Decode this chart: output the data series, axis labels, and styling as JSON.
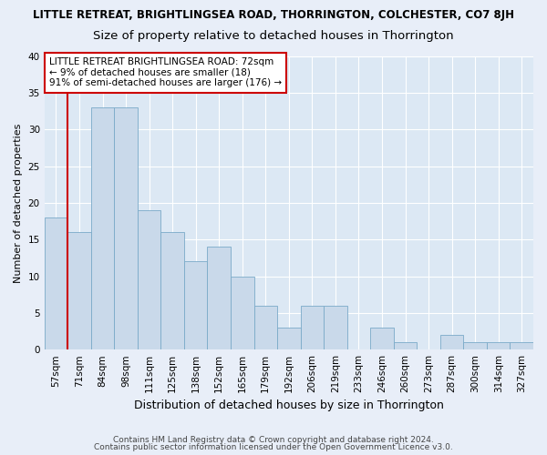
{
  "title": "LITTLE RETREAT, BRIGHTLINGSEA ROAD, THORRINGTON, COLCHESTER, CO7 8JH",
  "subtitle": "Size of property relative to detached houses in Thorrington",
  "xlabel": "Distribution of detached houses by size in Thorrington",
  "ylabel": "Number of detached properties",
  "categories": [
    "57sqm",
    "71sqm",
    "84sqm",
    "98sqm",
    "111sqm",
    "125sqm",
    "138sqm",
    "152sqm",
    "165sqm",
    "179sqm",
    "192sqm",
    "206sqm",
    "219sqm",
    "233sqm",
    "246sqm",
    "260sqm",
    "273sqm",
    "287sqm",
    "300sqm",
    "314sqm",
    "327sqm"
  ],
  "values": [
    18,
    16,
    33,
    33,
    19,
    16,
    12,
    14,
    10,
    6,
    3,
    6,
    6,
    0,
    3,
    1,
    0,
    2,
    1,
    1,
    1
  ],
  "bar_color": "#c9d9ea",
  "bar_edge_color": "#7aaac8",
  "highlight_color": "#cc0000",
  "highlight_bar_index": 1,
  "annotation_text": "LITTLE RETREAT BRIGHTLINGSEA ROAD: 72sqm\n← 9% of detached houses are smaller (18)\n91% of semi-detached houses are larger (176) →",
  "annotation_box_color": "#ffffff",
  "annotation_box_edge": "#cc0000",
  "ylim": [
    0,
    40
  ],
  "yticks": [
    0,
    5,
    10,
    15,
    20,
    25,
    30,
    35,
    40
  ],
  "footer1": "Contains HM Land Registry data © Crown copyright and database right 2024.",
  "footer2": "Contains public sector information licensed under the Open Government Licence v3.0.",
  "bg_color": "#e8eef8",
  "plot_bg_color": "#dce8f4",
  "title_fontsize": 8.5,
  "subtitle_fontsize": 9.5,
  "xlabel_fontsize": 9,
  "ylabel_fontsize": 8,
  "tick_fontsize": 7.5,
  "annotation_fontsize": 7.5,
  "footer_fontsize": 6.5
}
